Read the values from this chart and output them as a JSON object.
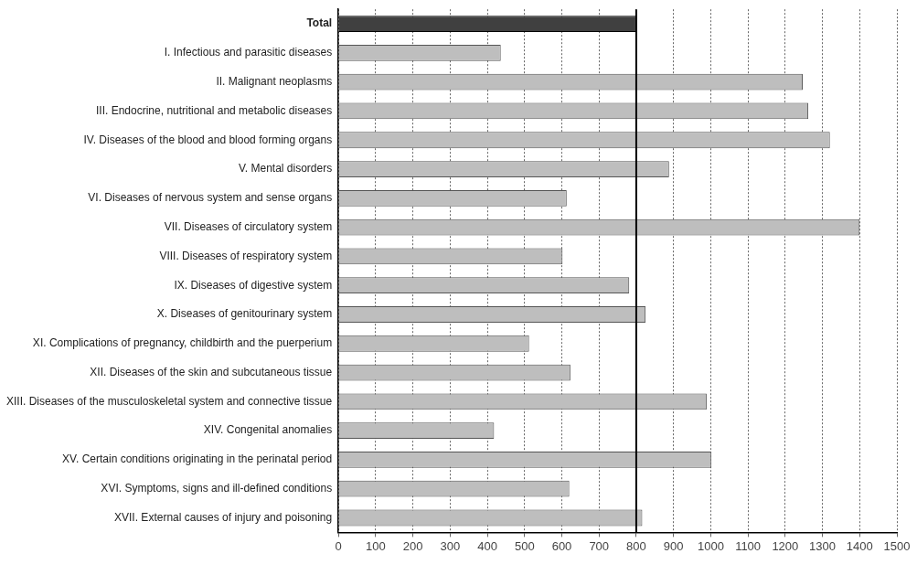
{
  "chart_data": {
    "type": "bar",
    "orientation": "horizontal",
    "categories": [
      "Total",
      "I. Infectious and parasitic diseases",
      "II. Malignant neoplasms",
      "III. Endocrine, nutritional and metabolic diseases",
      "IV. Diseases of the blood and blood forming organs",
      "V. Mental disorders",
      "VI. Diseases of nervous system and sense organs",
      "VII. Diseases of circulatory system",
      "VIII. Diseases of respiratory system",
      "IX. Diseases of digestive system",
      "X. Diseases of genitourinary system",
      "XI. Complications of pregnancy, childbirth and the puerperium",
      "XII. Diseases of the skin and subcutaneous tissue",
      "XIII. Diseases of the musculoskeletal system and connective tissue",
      "XIV. Congenital anomalies",
      "XV. Certain conditions originating in the perinatal period",
      "XVI. Symptoms, signs and ill-defined conditions",
      "XVII. External causes of injury and poisoning"
    ],
    "values": [
      800,
      436,
      1247,
      1262,
      1320,
      888,
      613,
      1400,
      602,
      781,
      825,
      512,
      623,
      989,
      418,
      1002,
      620,
      816
    ],
    "colors": [
      "#404040",
      "#bebebe",
      "#bebebe",
      "#bebebe",
      "#bebebe",
      "#bebebe",
      "#bebebe",
      "#bebebe",
      "#bebebe",
      "#bebebe",
      "#bebebe",
      "#bebebe",
      "#bebebe",
      "#bebebe",
      "#bebebe",
      "#bebebe",
      "#bebebe",
      "#bebebe"
    ],
    "xlim": [
      0,
      1500
    ],
    "xticks": [
      0,
      100,
      200,
      300,
      400,
      500,
      600,
      700,
      800,
      900,
      1000,
      1100,
      1200,
      1300,
      1400,
      1500
    ],
    "ref_lines": [
      {
        "axis": "x",
        "value": 800,
        "color": "#000000"
      }
    ],
    "grid": "x",
    "legend": false
  }
}
